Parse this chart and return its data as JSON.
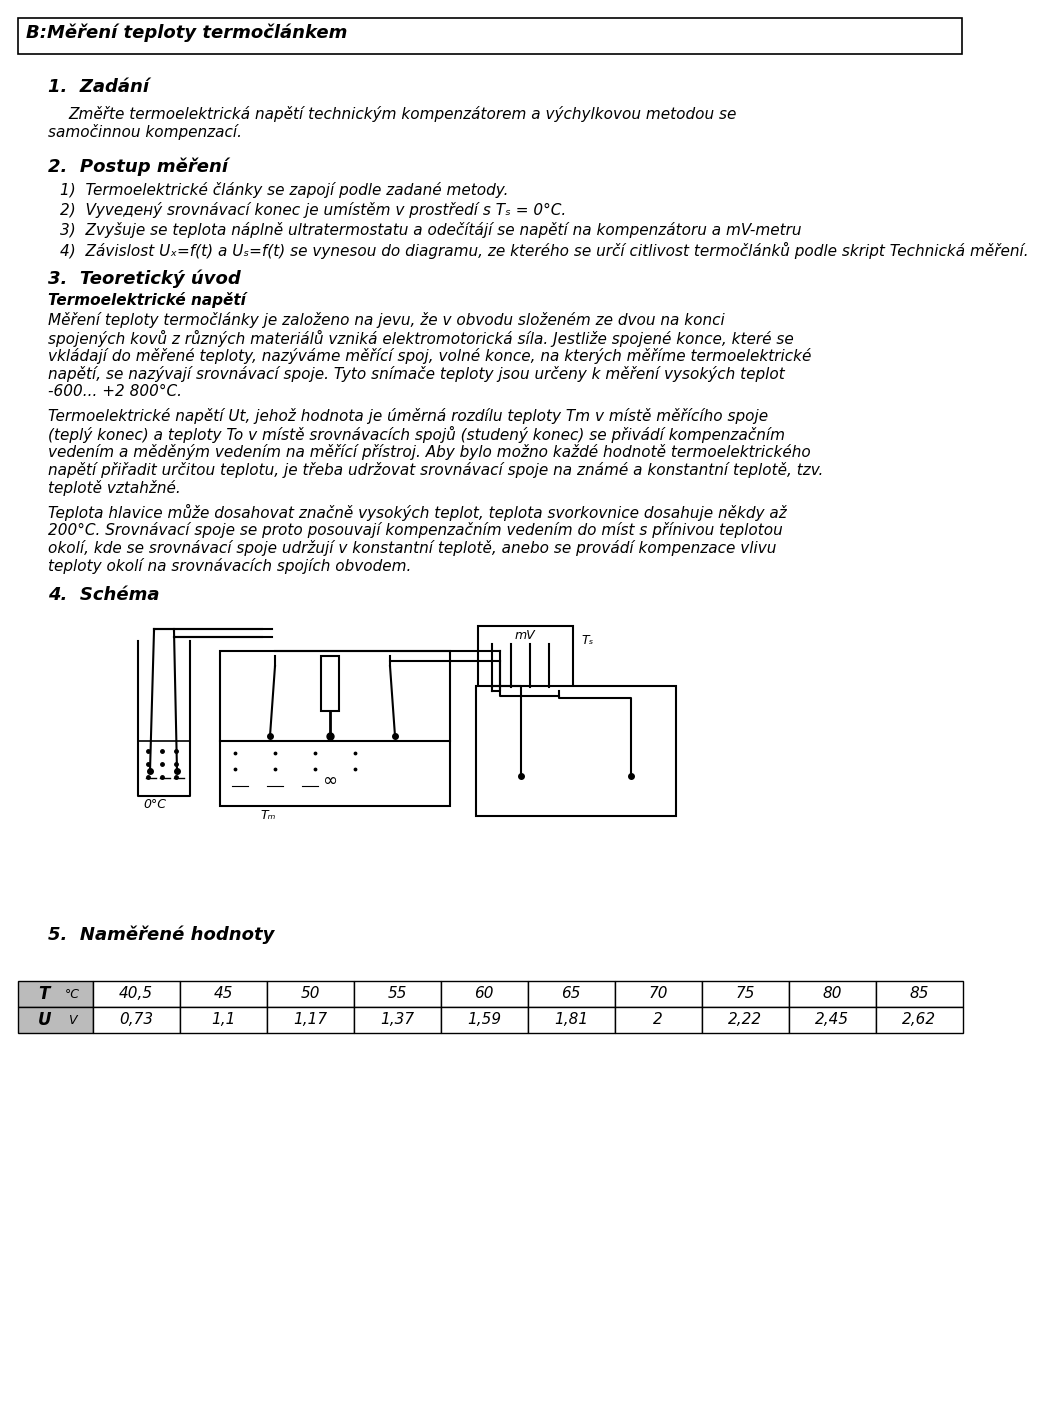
{
  "title": "B:Měření teploty termočlánkem",
  "section1_title": "1.  Zadání",
  "section1_text_line1": "Změřte termoelektrická napětí technickým kompenzátorem a výchylkovou metodou se",
  "section1_text_line2": "samočinnou kompenzací.",
  "section2_title": "2.  Postup měření",
  "section2_items": [
    "1)  Termoelektrické články se zapojí podle zadané metody.",
    "2)  Vyveденý srovnávací konec je umístěm v prostředí s Tₛ = 0°C.",
    "3)  Zvyšuje se teplota náplně ultratermostatu a odečítájí se napětí na kompenzátoru a mV-metru",
    "4)  Závislost Uₓ=f(t) a Uₛ=f(t) se vynesou do diagramu, ze kterého se určí citlivost termočlánků podle skript Technická měření."
  ],
  "section3_title": "3.  Teoretický úvod",
  "section3_subtitle": "Termoelektrické napětí",
  "section3_text1": [
    "Měření teploty termočlánky je založeno na jevu, že v obvodu složeném ze dvou na konci",
    "spojených kovů z různých materiálů vzniká elektromotorická síla. Jestliže spojené konce, které se",
    "vkládají do měřené teploty, nazýváme měřící spoj, volné konce, na kterých měříme termoelektrické",
    "napětí, se nazývají srovnávací spoje. Tyto snímače teploty jsou určeny k měření vysokých teplot",
    "-600... +2 800°C."
  ],
  "section3_text2": [
    "Termoelektrické napětí Ut, jehož hodnota je úměrná rozdílu teploty Tm v místě měřícího spoje",
    "(teplý konec) a teploty To v místě srovnávacích spojů (studený konec) se přivádí kompenzačním",
    "vedením a měděným vedením na měřící přístroj. Aby bylo možno každé hodnotě termoelektrického",
    "napětí přiřadit určitou teplotu, je třeba udržovat srovnávací spoje na známé a konstantní teplotě, tzv.",
    "teplotě vztahžné."
  ],
  "section3_text3": [
    "Teplota hlavice může dosahovat značně vysokých teplot, teplota svorkovnice dosahuje někdy až",
    "200°C. Srovnávací spoje se proto posouvají kompenzačním vedením do míst s přínivou teplotou",
    "okolí, kde se srovnávací spoje udržují v konstantní teplotě, anebo se provádí kompenzace vlivu",
    "teploty okolí na srovnávacích spojích obvodem."
  ],
  "section4_title": "4.  Schéma",
  "section5_title": "5.  Naměřené hodnoty",
  "table_temp": [
    40.5,
    45,
    50,
    55,
    60,
    65,
    70,
    75,
    80,
    85
  ],
  "table_volt": [
    0.73,
    1.1,
    1.17,
    1.37,
    1.59,
    1.81,
    2,
    2.22,
    2.45,
    2.62
  ],
  "bg_color": "#ffffff",
  "text_color": "#000000"
}
